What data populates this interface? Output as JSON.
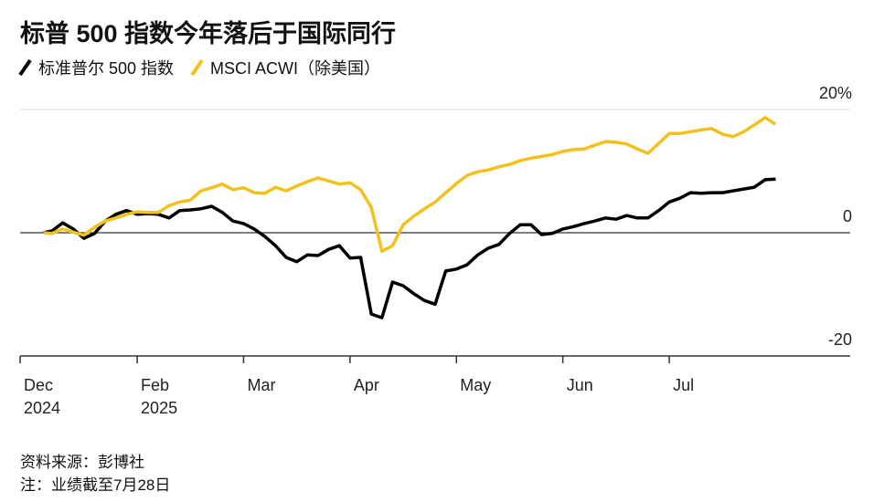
{
  "chart_data": {
    "type": "line",
    "title": "标普 500 指数今年落后于国际同行",
    "source": "资料来源：彭博社",
    "note": "注：业绩截至7月28日",
    "x": [
      0.12,
      0.2,
      0.3,
      0.4,
      0.5,
      0.6,
      0.7,
      0.8,
      0.9,
      1.0,
      1.1,
      1.2,
      1.3,
      1.4,
      1.5,
      1.6,
      1.7,
      1.8,
      1.9,
      2.0,
      2.1,
      2.2,
      2.3,
      2.4,
      2.5,
      2.6,
      2.7,
      2.8,
      2.9,
      3.0,
      3.1,
      3.2,
      3.3,
      3.4,
      3.5,
      3.6,
      3.7,
      3.8,
      3.9,
      4.0,
      4.1,
      4.2,
      4.3,
      4.4,
      4.5,
      4.6,
      4.7,
      4.8,
      4.9,
      5.0,
      5.1,
      5.2,
      5.3,
      5.4,
      5.5,
      5.6,
      5.7,
      5.8,
      5.9,
      6.0,
      6.1,
      6.2,
      6.3,
      6.4,
      6.5,
      6.6,
      6.7,
      6.8,
      6.9,
      7.0
    ],
    "series": [
      {
        "name": "标准普尔 500 指数",
        "color": "#000000",
        "values": [
          0.0,
          0.3,
          1.6,
          0.6,
          -0.9,
          -0.1,
          1.9,
          3.0,
          3.6,
          3.0,
          3.1,
          3.0,
          2.4,
          3.6,
          3.7,
          3.9,
          4.3,
          3.3,
          1.9,
          1.5,
          0.6,
          -0.6,
          -2.1,
          -4.0,
          -4.7,
          -3.6,
          -3.7,
          -2.7,
          -2.1,
          -4.1,
          -4.0,
          -13.2,
          -13.8,
          -8.0,
          -8.6,
          -9.9,
          -11.0,
          -11.6,
          -6.2,
          -5.9,
          -5.2,
          -3.6,
          -2.5,
          -1.9,
          -0.1,
          1.3,
          1.3,
          -0.3,
          -0.1,
          0.6,
          1.0,
          1.5,
          1.9,
          2.4,
          2.2,
          2.8,
          2.4,
          2.4,
          3.6,
          5.0,
          5.6,
          6.5,
          6.4,
          6.5,
          6.5,
          6.8,
          7.1,
          7.4,
          8.6,
          8.7
        ]
      },
      {
        "name": "MSCI ACWI（除美国）",
        "color": "#f2c11c",
        "values": [
          0.0,
          -0.1,
          0.6,
          0.1,
          -0.4,
          0.9,
          1.9,
          2.4,
          3.0,
          3.4,
          3.3,
          3.3,
          4.4,
          5.0,
          5.3,
          6.8,
          7.3,
          7.9,
          7.0,
          7.3,
          6.5,
          6.4,
          7.4,
          6.8,
          7.6,
          8.3,
          8.9,
          8.4,
          7.9,
          8.1,
          7.0,
          4.1,
          -3.0,
          -2.1,
          1.3,
          2.7,
          3.9,
          5.0,
          6.5,
          8.0,
          9.3,
          9.9,
          10.2,
          10.7,
          11.1,
          11.7,
          12.1,
          12.4,
          12.7,
          13.2,
          13.5,
          13.6,
          14.2,
          14.8,
          14.7,
          14.4,
          13.6,
          12.9,
          14.5,
          16.1,
          16.1,
          16.4,
          16.7,
          16.9,
          16.0,
          15.6,
          16.4,
          17.5,
          18.7,
          17.6
        ]
      }
    ],
    "xlim": [
      -0.1,
      7.7
    ],
    "xticks": [
      {
        "value": -0.1,
        "label": "Dec\n2024"
      },
      {
        "value": 1,
        "label": "Feb\n2025"
      },
      {
        "value": 2,
        "label": "Mar"
      },
      {
        "value": 3,
        "label": "Apr"
      },
      {
        "value": 4,
        "label": "May"
      },
      {
        "value": 5,
        "label": "Jun"
      },
      {
        "value": 6,
        "label": "Jul"
      }
    ],
    "ylim": [
      -20,
      20
    ],
    "yticks": [
      {
        "value": 20,
        "label": "20%"
      },
      0,
      -20
    ],
    "grid": true
  }
}
